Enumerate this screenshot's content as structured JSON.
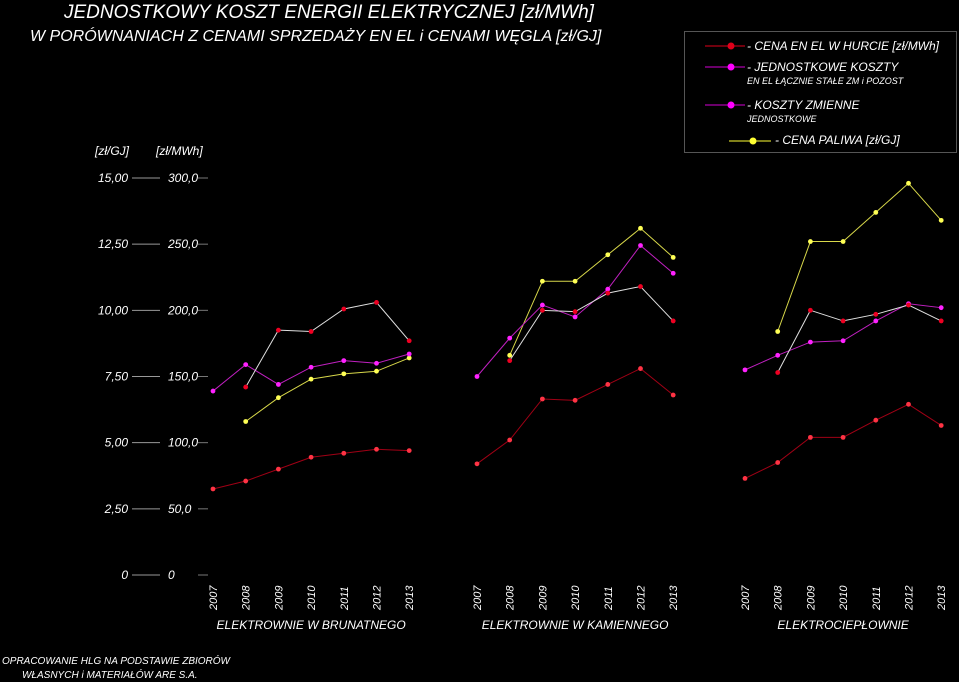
{
  "title": "JEDNOSTKOWY KOSZT ENERGII ELEKTRYCZNEJ [zł/MWh]",
  "subtitle": "W PORÓWNANIACH Z CENAMI  SPRZEDAŻY EN EL i CENAMI WĘGLA [zł/GJ]",
  "units": {
    "left": "[zł/GJ]",
    "right": "[zł/MWh]"
  },
  "legend": [
    {
      "label": "- CENA EN EL W HURCIE [zł/MWh]",
      "sub": "",
      "color": "#e0001a"
    },
    {
      "label": "- JEDNOSTKOWE KOSZTY",
      "sub": "EN EL ŁĄCZNIE STAŁE ZM i POZOST",
      "color": "#d400d4"
    },
    {
      "label": "- KOSZTY ZMIENNE",
      "sub": "JEDNOSTKOWE",
      "color": "#ff00ff"
    },
    {
      "label": "- CENA PALIWA [zł/GJ]",
      "sub": "",
      "color": "#ffff33"
    }
  ],
  "footer": [
    "OPRACOWANIE HLG NA PODSTAWIE ZBIORÓW",
    "WŁASNYCH i MATERIAŁÓW ARE S.A."
  ],
  "chart_data": {
    "type": "line",
    "y_left": {
      "label": "[zł/GJ]",
      "ticks": [
        "0",
        "2,50",
        "5,00",
        "7,50",
        "10,00",
        "12,50",
        "15,00"
      ],
      "range": [
        0,
        15
      ]
    },
    "y_right": {
      "label": "[zł/MWh]",
      "ticks": [
        "0",
        "50,0",
        "100,0",
        "150,0",
        "200,0",
        "250,0",
        "300,0"
      ],
      "range": [
        0,
        300
      ]
    },
    "years": [
      "2007",
      "2008",
      "2009",
      "2010",
      "2011",
      "2012",
      "2013"
    ],
    "groups": [
      {
        "name": "ELEKTROWNIE W BRUNATNEGO",
        "series": {
          "wholesale_price": [
            null,
            142,
            185,
            184,
            201,
            206,
            177
          ],
          "unit_costs_total": [
            139,
            159,
            144,
            157,
            162,
            160,
            167
          ],
          "variable_costs": [
            null,
            null,
            null,
            null,
            null,
            null,
            null
          ],
          "fuel_price": [
            null,
            5.8,
            6.7,
            7.4,
            7.6,
            7.7,
            8.2
          ]
        },
        "wholesale_variable": [
          65,
          71,
          80,
          89,
          92,
          95,
          94
        ]
      },
      {
        "name": "ELEKTROWNIE W KAMIENNEGO",
        "series": {
          "wholesale_price": [
            null,
            162,
            200,
            199,
            213,
            218,
            192
          ],
          "unit_costs_total": [
            150,
            179,
            204,
            195,
            216,
            249,
            228
          ],
          "fuel_price": [
            null,
            8.3,
            11.1,
            11.1,
            12.1,
            13.1,
            12.0
          ]
        },
        "wholesale_variable": [
          84,
          102,
          133,
          132,
          144,
          156,
          136
        ]
      },
      {
        "name": "ELEKTROCIEPŁOWNIE",
        "series": {
          "wholesale_price": [
            null,
            153,
            200,
            192,
            197,
            204,
            192
          ],
          "unit_costs_total": [
            155,
            166,
            176,
            177,
            192,
            205,
            202
          ],
          "fuel_price": [
            null,
            9.2,
            12.6,
            12.6,
            13.7,
            14.8,
            13.4
          ]
        },
        "wholesale_variable": [
          73,
          85,
          104,
          104,
          117,
          129,
          113
        ]
      }
    ]
  }
}
